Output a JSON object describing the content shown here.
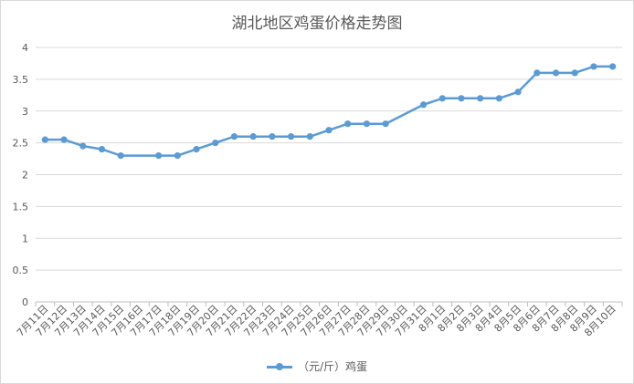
{
  "chart_data": {
    "type": "line",
    "title": "湖北地区鸡蛋价格走势图",
    "xlabel": "",
    "ylabel": "",
    "ylim": [
      0,
      4
    ],
    "yticks": [
      "0",
      "0.5",
      "1",
      "1.5",
      "2",
      "2.5",
      "3",
      "3.5",
      "4"
    ],
    "grid": true,
    "legend_position": "bottom",
    "categories": [
      "7月11日",
      "7月12日",
      "7月13日",
      "7月14日",
      "7月15日",
      "7月16日",
      "7月17日",
      "7月18日",
      "7月19日",
      "7月20日",
      "7月21日",
      "7月22日",
      "7月23日",
      "7月24日",
      "7月25日",
      "7月26日",
      "7月27日",
      "7月28日",
      "7月29日",
      "7月30日",
      "7月31日",
      "8月1日",
      "8月2日",
      "8月3日",
      "8月4日",
      "8月5日",
      "8月6日",
      "8月7日",
      "8月8日",
      "8月9日",
      "8月10日"
    ],
    "series": [
      {
        "name": "（元/斤）鸡蛋",
        "color": "#5b9bd5",
        "values": [
          2.55,
          2.55,
          2.45,
          2.4,
          2.3,
          null,
          2.3,
          2.3,
          2.4,
          2.5,
          2.6,
          2.6,
          2.6,
          2.6,
          2.6,
          2.7,
          2.8,
          2.8,
          2.8,
          null,
          3.1,
          3.2,
          3.2,
          3.2,
          3.2,
          3.3,
          3.6,
          3.6,
          3.6,
          3.7,
          3.7
        ]
      }
    ]
  }
}
